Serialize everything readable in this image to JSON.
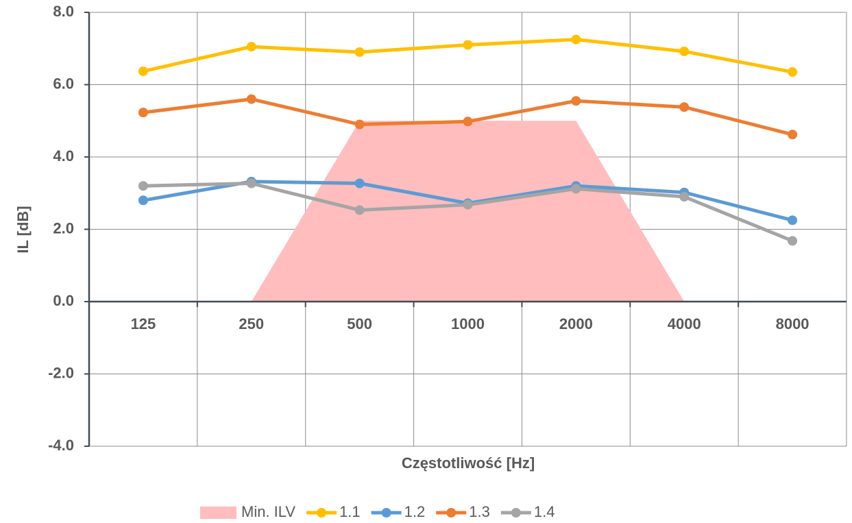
{
  "chart_data": {
    "type": "line",
    "x_label": "Częstotliwość [Hz]",
    "y_label": "IL [dB]",
    "categories": [
      "125",
      "250",
      "500",
      "1000",
      "2000",
      "4000",
      "8000"
    ],
    "ylim": [
      -4,
      8
    ],
    "yticks": [
      {
        "value": -4,
        "label": "-4.0"
      },
      {
        "value": -2,
        "label": "-2.0"
      },
      {
        "value": 0,
        "label": "0.0"
      },
      {
        "value": 2,
        "label": "2.0"
      },
      {
        "value": 4,
        "label": "4.0"
      },
      {
        "value": 6,
        "label": "6.0"
      },
      {
        "value": 8,
        "label": "8.0"
      }
    ],
    "grid": true,
    "legend": "bottom",
    "series": [
      {
        "name": "Min. ILV",
        "type": "area",
        "color": "#ffbdbd",
        "values": [
          0,
          0,
          5,
          5,
          5,
          0,
          0
        ]
      },
      {
        "name": "1.1",
        "color": "#ffc000",
        "values": [
          6.37,
          7.05,
          6.9,
          7.1,
          7.25,
          6.92,
          6.35
        ]
      },
      {
        "name": "1.2",
        "color": "#5b9bd5",
        "values": [
          2.8,
          3.32,
          3.27,
          2.72,
          3.2,
          3.02,
          2.25
        ]
      },
      {
        "name": "1.3",
        "color": "#ed7d31",
        "values": [
          5.23,
          5.6,
          4.9,
          4.98,
          5.55,
          5.38,
          4.62
        ]
      },
      {
        "name": "1.4",
        "color": "#a5a5a5",
        "values": [
          3.2,
          3.27,
          2.53,
          2.68,
          3.12,
          2.9,
          1.68
        ]
      }
    ]
  }
}
